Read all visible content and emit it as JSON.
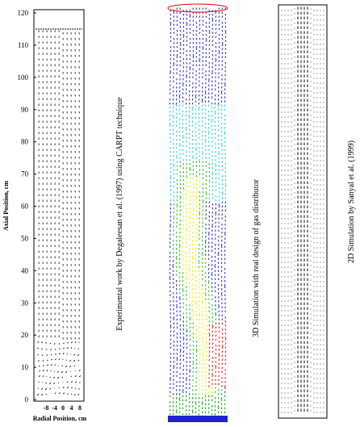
{
  "left_panel": {
    "y_axis_label": "Axial Position, cm",
    "x_axis_label": "Radial Position, cm",
    "y_ticks": [
      "0",
      "10",
      "20",
      "30",
      "40",
      "50",
      "60",
      "70",
      "80",
      "90",
      "100",
      "110",
      "120"
    ],
    "x_ticks": [
      "-8",
      "-4",
      "0",
      "4",
      "8"
    ],
    "caption": "Experimental work by Degaleesan et al. (1997)  using CARPT technique"
  },
  "middle_panel": {
    "caption": "3D Simulation with real design of gas distributor"
  },
  "right_panel": {
    "caption": "2D Simulation by Sanyal et al. (1999)"
  }
}
